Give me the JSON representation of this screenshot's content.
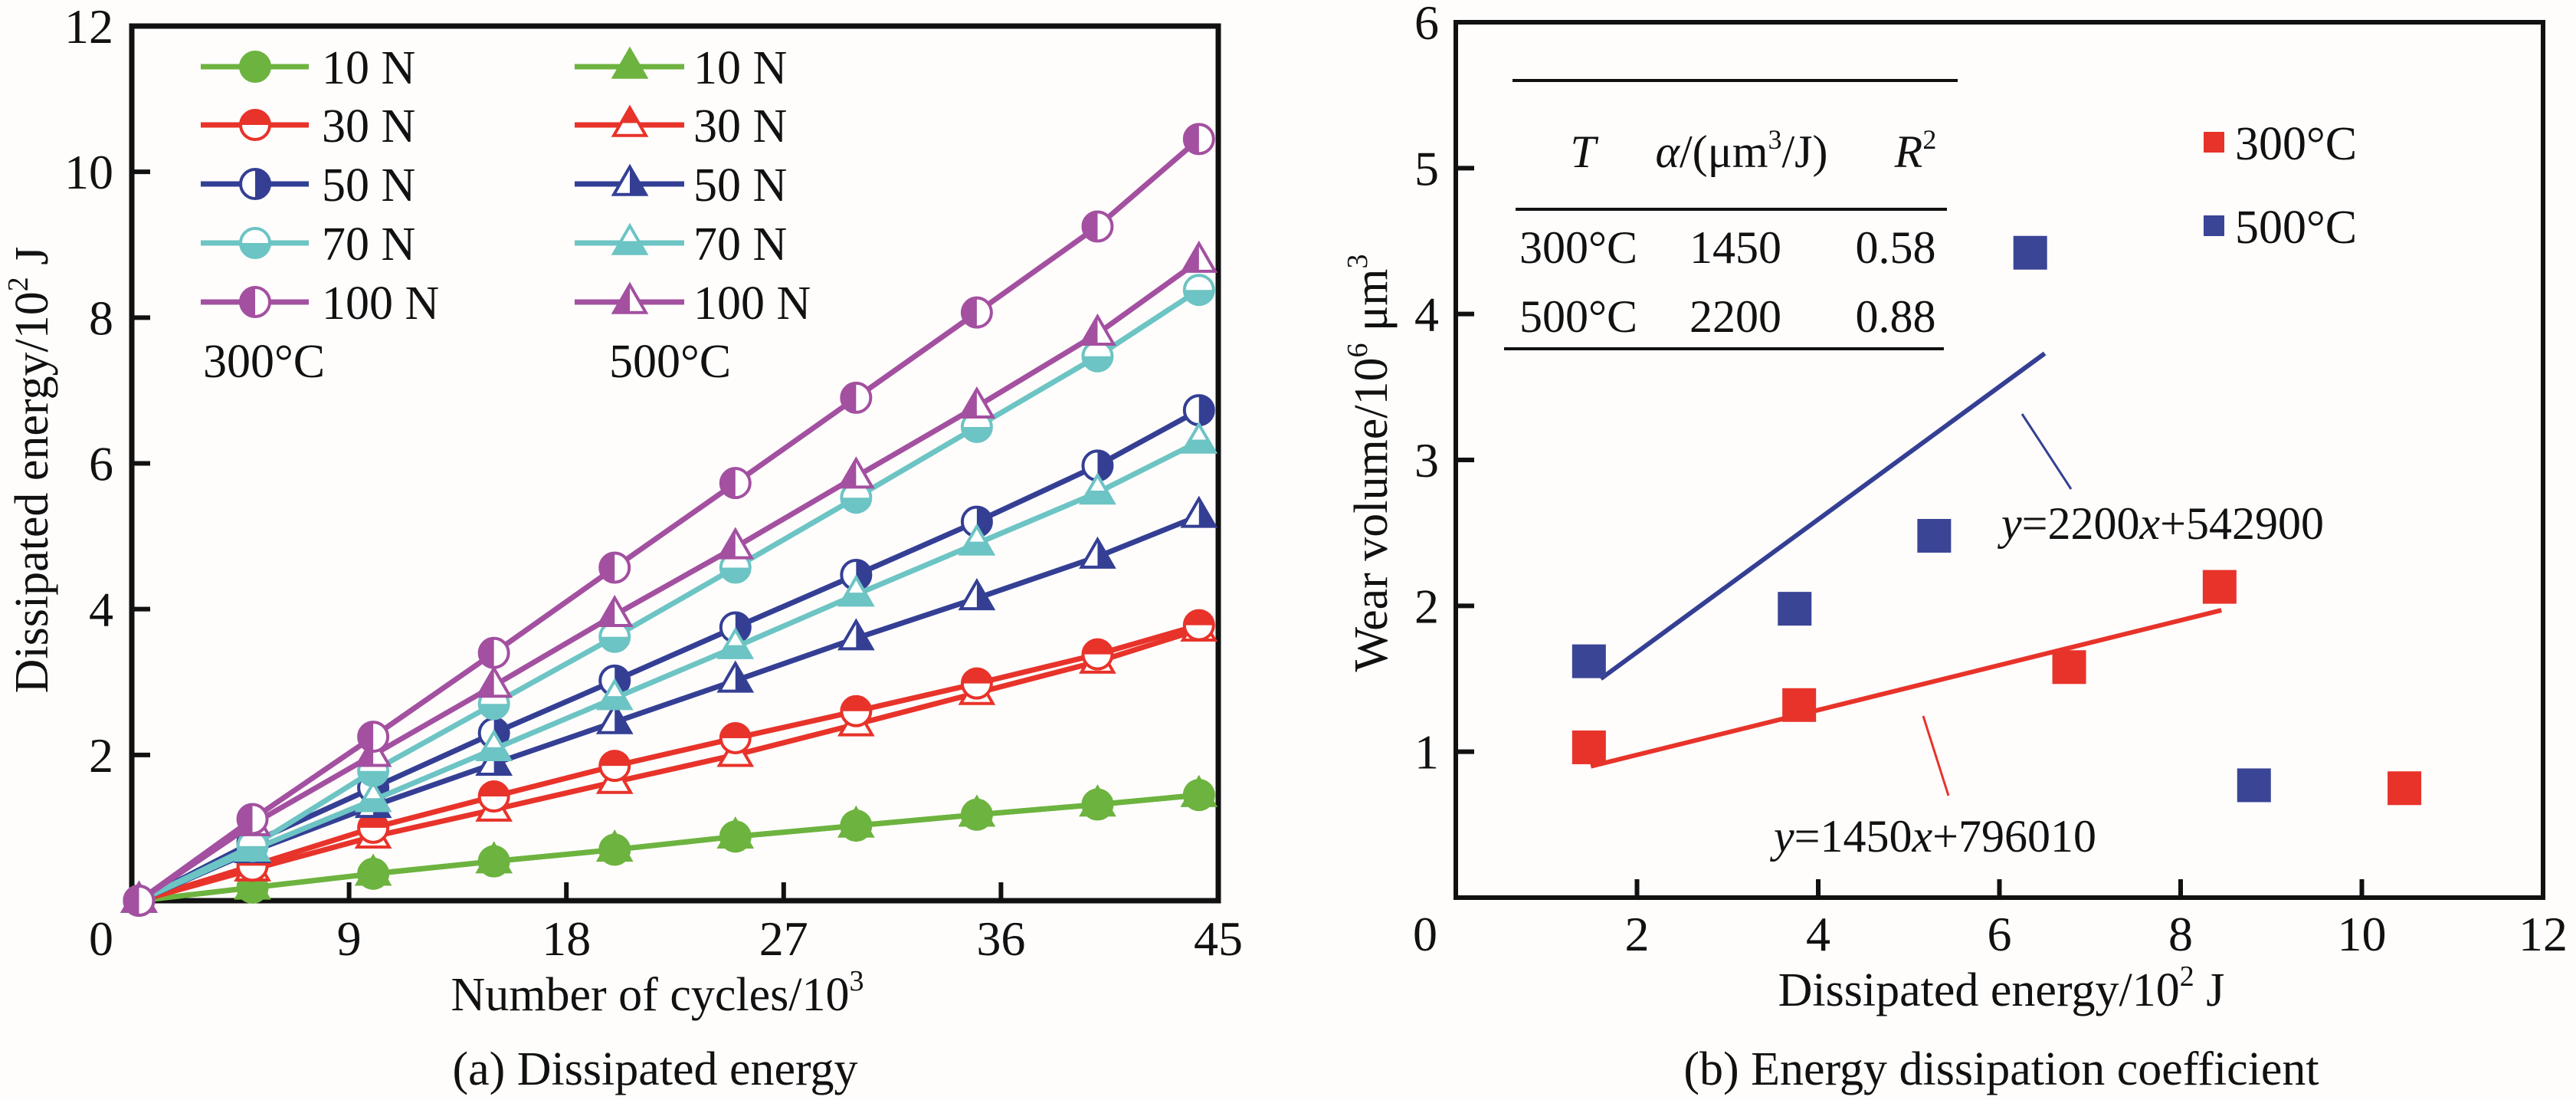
{
  "colors": {
    "green": "#6DB33F",
    "red": "#E8332A",
    "navy": "#343F94",
    "teal": "#6DC4C4",
    "purple": "#A350A0",
    "blue_square": "#3A4596",
    "red_square": "#E8332A",
    "axis": "#111111"
  },
  "chart_data": [
    {
      "id": "a",
      "type": "line",
      "caption": "(a) Dissipated energy",
      "title": "",
      "xlabel": "Number of cycles/10",
      "xlabel_sup": "3",
      "ylabel": "Dissipated energy/10",
      "ylabel_sup": "2",
      "ylabel_suffix": " J",
      "xlim": [
        0,
        45
      ],
      "ylim": [
        0,
        12
      ],
      "xticks": [
        0,
        9,
        18,
        27,
        36,
        45
      ],
      "yticks": [
        2,
        4,
        6,
        8,
        10,
        12
      ],
      "ytick_labels": [
        "2",
        "4",
        "6",
        "8",
        "10",
        "12"
      ],
      "xtick_labels": [
        "0",
        "9",
        "18",
        "27",
        "36",
        "45"
      ],
      "origin_label": "0",
      "grid": false,
      "legend_groups": [
        {
          "label": "300°C",
          "marker": "circle"
        },
        {
          "label": "500°C",
          "marker": "triangle"
        }
      ],
      "x": [
        0.3,
        5,
        10,
        15,
        20,
        25,
        30,
        35,
        40,
        44.2
      ],
      "series": [
        {
          "name": "10 N",
          "group": "300°C",
          "color_key": "green",
          "fill": "full",
          "values": [
            0,
            0.18,
            0.37,
            0.54,
            0.7,
            0.88,
            1.03,
            1.18,
            1.32,
            1.45
          ]
        },
        {
          "name": "30 N",
          "group": "300°C",
          "color_key": "red",
          "fill": "top",
          "values": [
            0,
            0.48,
            1.0,
            1.43,
            1.85,
            2.23,
            2.6,
            2.98,
            3.38,
            3.78
          ]
        },
        {
          "name": "50 N",
          "group": "300°C",
          "color_key": "navy",
          "fill": "right",
          "values": [
            0,
            0.8,
            1.55,
            2.3,
            3.02,
            3.75,
            4.47,
            5.2,
            5.97,
            6.73
          ]
        },
        {
          "name": "70 N",
          "group": "300°C",
          "color_key": "teal",
          "fill": "bottom",
          "values": [
            0,
            0.75,
            1.78,
            2.7,
            3.62,
            4.57,
            5.53,
            6.5,
            7.47,
            8.38
          ]
        },
        {
          "name": "100 N",
          "group": "300°C",
          "color_key": "purple",
          "fill": "left",
          "values": [
            0,
            1.12,
            2.25,
            3.4,
            4.57,
            5.73,
            6.9,
            8.07,
            9.25,
            10.45
          ]
        },
        {
          "name": "10 N",
          "group": "500°C",
          "color_key": "green",
          "fill": "full",
          "values": [
            0,
            0.18,
            0.37,
            0.54,
            0.7,
            0.88,
            1.03,
            1.18,
            1.32,
            1.45
          ]
        },
        {
          "name": "30 N",
          "group": "500°C",
          "color_key": "red",
          "fill": "top",
          "values": [
            0,
            0.43,
            0.88,
            1.25,
            1.63,
            2.0,
            2.42,
            2.85,
            3.28,
            3.72
          ]
        },
        {
          "name": "50 N",
          "group": "500°C",
          "color_key": "navy",
          "fill": "right",
          "values": [
            0,
            0.68,
            1.3,
            1.88,
            2.45,
            3.02,
            3.6,
            4.15,
            4.72,
            5.28
          ]
        },
        {
          "name": "70 N",
          "group": "500°C",
          "color_key": "teal",
          "fill": "bottom",
          "values": [
            0,
            0.7,
            1.38,
            2.08,
            2.78,
            3.48,
            4.2,
            4.9,
            5.6,
            6.3
          ]
        },
        {
          "name": "100 N",
          "group": "500°C",
          "color_key": "purple",
          "fill": "left",
          "values": [
            0,
            1.05,
            2.0,
            2.95,
            3.92,
            4.85,
            5.82,
            6.78,
            7.78,
            8.78
          ]
        }
      ]
    },
    {
      "id": "b",
      "type": "scatter",
      "caption": "(b) Energy dissipation coefficient",
      "title": "",
      "xlabel": "Dissipated energy/10",
      "xlabel_sup": "2",
      "xlabel_suffix": " J",
      "ylabel": "Wear volume/10",
      "ylabel_sup": "6",
      "ylabel_suffix": " μm",
      "ylabel_sup2": "3",
      "xlim": [
        0,
        12
      ],
      "ylim": [
        0,
        6
      ],
      "xticks": [
        2,
        4,
        6,
        8,
        10,
        12
      ],
      "xtick_labels": [
        "2",
        "4",
        "6",
        "8",
        "10",
        "12"
      ],
      "yticks": [
        1,
        2,
        3,
        4,
        5,
        6
      ],
      "ytick_labels": [
        "1",
        "2",
        "3",
        "4",
        "5",
        "6"
      ],
      "origin_label": "0",
      "grid": false,
      "legend": [
        {
          "label": "300°C",
          "color_key": "red_square"
        },
        {
          "label": "500°C",
          "color_key": "blue_square"
        }
      ],
      "legend_position": "top-right",
      "series": [
        {
          "name": "300°C",
          "color_key": "red_square",
          "points": [
            [
              1.47,
              1.03
            ],
            [
              3.79,
              1.32
            ],
            [
              6.77,
              1.58
            ],
            [
              8.43,
              2.13
            ],
            [
              10.47,
              0.75
            ]
          ],
          "fit": {
            "x": [
              1.49,
              8.45
            ],
            "y": [
              0.9,
              1.97
            ]
          },
          "equation": {
            "y_var": "y",
            "text1": "=1450",
            "x_var": "x",
            "text2": "+796010"
          }
        },
        {
          "name": "500°C",
          "color_key": "blue_square",
          "points": [
            [
              1.47,
              1.62
            ],
            [
              3.74,
              1.98
            ],
            [
              5.28,
              2.48
            ],
            [
              6.34,
              4.42
            ],
            [
              8.81,
              0.77
            ]
          ],
          "fit": {
            "x": [
              1.6,
              6.5
            ],
            "y": [
              1.5,
              3.73
            ]
          },
          "equation": {
            "y_var": "y",
            "text1": "=2200",
            "x_var": "x",
            "text2": "+542900"
          }
        }
      ],
      "inset_table": {
        "headers": {
          "T": "T",
          "alpha": "α",
          "alpha_unit_pre": "/(μm",
          "alpha_unit_sup": "3",
          "alpha_unit_post": "/J)",
          "R": "R",
          "R_sup": "2"
        },
        "rows": [
          [
            "300°C",
            "1450",
            "0.58"
          ],
          [
            "500°C",
            "2200",
            "0.88"
          ]
        ]
      }
    }
  ]
}
